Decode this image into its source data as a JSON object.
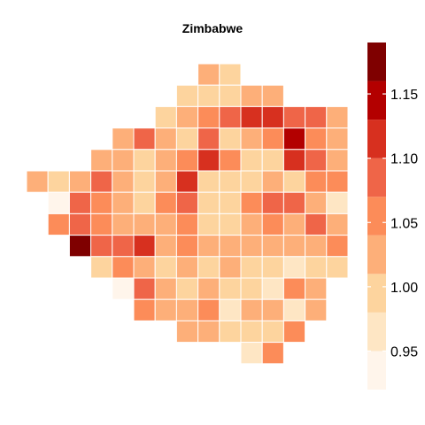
{
  "chart_data": {
    "type": "heatmap",
    "title": "Zimbabwe",
    "xlabel": "",
    "ylabel": "",
    "grid": false,
    "legend_placement": "right",
    "value_range": [
      0.92,
      1.19
    ],
    "colorbar_ticks": [
      0.95,
      1.0,
      1.05,
      1.1,
      1.15
    ],
    "colorbar_tick_labels": [
      "0.95",
      "1.00",
      "1.05",
      "1.10",
      "1.15"
    ],
    "palette": [
      "#fff5eb",
      "#fee6c4",
      "#fdd49e",
      "#fdaf79",
      "#fc8c59",
      "#ef6548",
      "#d7301f",
      "#b30000",
      "#7f0000"
    ],
    "palette_breaks": [
      0.92,
      0.95,
      0.98,
      1.01,
      1.04,
      1.07,
      1.1,
      1.13,
      1.16,
      1.19
    ],
    "cells": [
      {
        "row": 0,
        "col": 8,
        "value": 1.03
      },
      {
        "row": 0,
        "col": 9,
        "value": 1.0
      },
      {
        "row": 1,
        "col": 7,
        "value": 1.0
      },
      {
        "row": 1,
        "col": 8,
        "value": 1.0
      },
      {
        "row": 1,
        "col": 9,
        "value": 1.0
      },
      {
        "row": 1,
        "col": 10,
        "value": 1.03
      },
      {
        "row": 1,
        "col": 11,
        "value": 1.03
      },
      {
        "row": 2,
        "col": 6,
        "value": 1.0
      },
      {
        "row": 2,
        "col": 7,
        "value": 1.03
      },
      {
        "row": 2,
        "col": 8,
        "value": 1.06
      },
      {
        "row": 2,
        "col": 9,
        "value": 1.09
      },
      {
        "row": 2,
        "col": 10,
        "value": 1.12
      },
      {
        "row": 2,
        "col": 11,
        "value": 1.12
      },
      {
        "row": 2,
        "col": 12,
        "value": 1.09
      },
      {
        "row": 2,
        "col": 13,
        "value": 1.09
      },
      {
        "row": 2,
        "col": 14,
        "value": 1.03
      },
      {
        "row": 3,
        "col": 4,
        "value": 1.03
      },
      {
        "row": 3,
        "col": 5,
        "value": 1.09
      },
      {
        "row": 3,
        "col": 6,
        "value": 1.03
      },
      {
        "row": 3,
        "col": 7,
        "value": 1.0
      },
      {
        "row": 3,
        "col": 8,
        "value": 1.09
      },
      {
        "row": 3,
        "col": 9,
        "value": 1.0
      },
      {
        "row": 3,
        "col": 10,
        "value": 1.03
      },
      {
        "row": 3,
        "col": 11,
        "value": 1.06
      },
      {
        "row": 3,
        "col": 12,
        "value": 1.15
      },
      {
        "row": 3,
        "col": 13,
        "value": 1.06
      },
      {
        "row": 3,
        "col": 14,
        "value": 1.03
      },
      {
        "row": 4,
        "col": 3,
        "value": 1.03
      },
      {
        "row": 4,
        "col": 4,
        "value": 1.03
      },
      {
        "row": 4,
        "col": 5,
        "value": 1.0
      },
      {
        "row": 4,
        "col": 6,
        "value": 1.03
      },
      {
        "row": 4,
        "col": 7,
        "value": 1.06
      },
      {
        "row": 4,
        "col": 8,
        "value": 1.12
      },
      {
        "row": 4,
        "col": 9,
        "value": 1.06
      },
      {
        "row": 4,
        "col": 10,
        "value": 1.0
      },
      {
        "row": 4,
        "col": 11,
        "value": 1.0
      },
      {
        "row": 4,
        "col": 12,
        "value": 1.12
      },
      {
        "row": 4,
        "col": 13,
        "value": 1.09
      },
      {
        "row": 4,
        "col": 14,
        "value": 1.03
      },
      {
        "row": 5,
        "col": 0,
        "value": 1.03
      },
      {
        "row": 5,
        "col": 1,
        "value": 1.0
      },
      {
        "row": 5,
        "col": 2,
        "value": 1.03
      },
      {
        "row": 5,
        "col": 3,
        "value": 1.09
      },
      {
        "row": 5,
        "col": 4,
        "value": 1.03
      },
      {
        "row": 5,
        "col": 5,
        "value": 1.0
      },
      {
        "row": 5,
        "col": 6,
        "value": 1.03
      },
      {
        "row": 5,
        "col": 7,
        "value": 1.12
      },
      {
        "row": 5,
        "col": 8,
        "value": 1.0
      },
      {
        "row": 5,
        "col": 9,
        "value": 1.0
      },
      {
        "row": 5,
        "col": 10,
        "value": 1.0
      },
      {
        "row": 5,
        "col": 11,
        "value": 1.03
      },
      {
        "row": 5,
        "col": 12,
        "value": 1.0
      },
      {
        "row": 5,
        "col": 13,
        "value": 1.06
      },
      {
        "row": 5,
        "col": 14,
        "value": 1.06
      },
      {
        "row": 6,
        "col": 1,
        "value": 0.93
      },
      {
        "row": 6,
        "col": 2,
        "value": 1.09
      },
      {
        "row": 6,
        "col": 3,
        "value": 1.06
      },
      {
        "row": 6,
        "col": 4,
        "value": 1.03
      },
      {
        "row": 6,
        "col": 5,
        "value": 1.0
      },
      {
        "row": 6,
        "col": 6,
        "value": 1.06
      },
      {
        "row": 6,
        "col": 7,
        "value": 1.09
      },
      {
        "row": 6,
        "col": 8,
        "value": 1.0
      },
      {
        "row": 6,
        "col": 9,
        "value": 1.0
      },
      {
        "row": 6,
        "col": 10,
        "value": 1.06
      },
      {
        "row": 6,
        "col": 11,
        "value": 1.09
      },
      {
        "row": 6,
        "col": 12,
        "value": 1.09
      },
      {
        "row": 6,
        "col": 13,
        "value": 1.03
      },
      {
        "row": 6,
        "col": 14,
        "value": 0.96
      },
      {
        "row": 7,
        "col": 1,
        "value": 1.06
      },
      {
        "row": 7,
        "col": 2,
        "value": 1.09
      },
      {
        "row": 7,
        "col": 3,
        "value": 1.06
      },
      {
        "row": 7,
        "col": 4,
        "value": 1.03
      },
      {
        "row": 7,
        "col": 5,
        "value": 1.03
      },
      {
        "row": 7,
        "col": 6,
        "value": 1.03
      },
      {
        "row": 7,
        "col": 7,
        "value": 1.06
      },
      {
        "row": 7,
        "col": 8,
        "value": 1.0
      },
      {
        "row": 7,
        "col": 9,
        "value": 1.0
      },
      {
        "row": 7,
        "col": 10,
        "value": 1.03
      },
      {
        "row": 7,
        "col": 11,
        "value": 1.06
      },
      {
        "row": 7,
        "col": 12,
        "value": 1.03
      },
      {
        "row": 7,
        "col": 13,
        "value": 1.09
      },
      {
        "row": 7,
        "col": 14,
        "value": 1.03
      },
      {
        "row": 8,
        "col": 2,
        "value": 1.17
      },
      {
        "row": 8,
        "col": 3,
        "value": 1.09
      },
      {
        "row": 8,
        "col": 4,
        "value": 1.09
      },
      {
        "row": 8,
        "col": 5,
        "value": 1.12
      },
      {
        "row": 8,
        "col": 6,
        "value": 1.03
      },
      {
        "row": 8,
        "col": 7,
        "value": 1.06
      },
      {
        "row": 8,
        "col": 8,
        "value": 1.03
      },
      {
        "row": 8,
        "col": 9,
        "value": 1.03
      },
      {
        "row": 8,
        "col": 10,
        "value": 1.03
      },
      {
        "row": 8,
        "col": 11,
        "value": 1.03
      },
      {
        "row": 8,
        "col": 12,
        "value": 1.03
      },
      {
        "row": 8,
        "col": 13,
        "value": 1.03
      },
      {
        "row": 8,
        "col": 14,
        "value": 1.06
      },
      {
        "row": 9,
        "col": 3,
        "value": 0.99
      },
      {
        "row": 9,
        "col": 4,
        "value": 1.06
      },
      {
        "row": 9,
        "col": 5,
        "value": 1.03
      },
      {
        "row": 9,
        "col": 6,
        "value": 1.0
      },
      {
        "row": 9,
        "col": 7,
        "value": 1.03
      },
      {
        "row": 9,
        "col": 8,
        "value": 1.0
      },
      {
        "row": 9,
        "col": 9,
        "value": 1.03
      },
      {
        "row": 9,
        "col": 10,
        "value": 1.0
      },
      {
        "row": 9,
        "col": 11,
        "value": 1.0
      },
      {
        "row": 9,
        "col": 12,
        "value": 0.97
      },
      {
        "row": 9,
        "col": 13,
        "value": 1.0
      },
      {
        "row": 9,
        "col": 14,
        "value": 1.0
      },
      {
        "row": 10,
        "col": 4,
        "value": 0.94
      },
      {
        "row": 10,
        "col": 5,
        "value": 1.09
      },
      {
        "row": 10,
        "col": 6,
        "value": 1.03
      },
      {
        "row": 10,
        "col": 7,
        "value": 1.0
      },
      {
        "row": 10,
        "col": 8,
        "value": 1.03
      },
      {
        "row": 10,
        "col": 9,
        "value": 1.0
      },
      {
        "row": 10,
        "col": 10,
        "value": 1.0
      },
      {
        "row": 10,
        "col": 11,
        "value": 0.97
      },
      {
        "row": 10,
        "col": 12,
        "value": 1.06
      },
      {
        "row": 10,
        "col": 13,
        "value": 1.03
      },
      {
        "row": 11,
        "col": 5,
        "value": 1.06
      },
      {
        "row": 11,
        "col": 6,
        "value": 1.03
      },
      {
        "row": 11,
        "col": 7,
        "value": 1.03
      },
      {
        "row": 11,
        "col": 8,
        "value": 1.06
      },
      {
        "row": 11,
        "col": 9,
        "value": 0.97
      },
      {
        "row": 11,
        "col": 10,
        "value": 1.03
      },
      {
        "row": 11,
        "col": 11,
        "value": 1.03
      },
      {
        "row": 11,
        "col": 12,
        "value": 0.97
      },
      {
        "row": 11,
        "col": 13,
        "value": 1.03
      },
      {
        "row": 12,
        "col": 7,
        "value": 1.03
      },
      {
        "row": 12,
        "col": 8,
        "value": 1.03
      },
      {
        "row": 12,
        "col": 9,
        "value": 1.0
      },
      {
        "row": 12,
        "col": 10,
        "value": 1.0
      },
      {
        "row": 12,
        "col": 11,
        "value": 1.0
      },
      {
        "row": 12,
        "col": 12,
        "value": 1.06
      },
      {
        "row": 13,
        "col": 10,
        "value": 0.97
      },
      {
        "row": 13,
        "col": 11,
        "value": 1.06
      }
    ]
  }
}
